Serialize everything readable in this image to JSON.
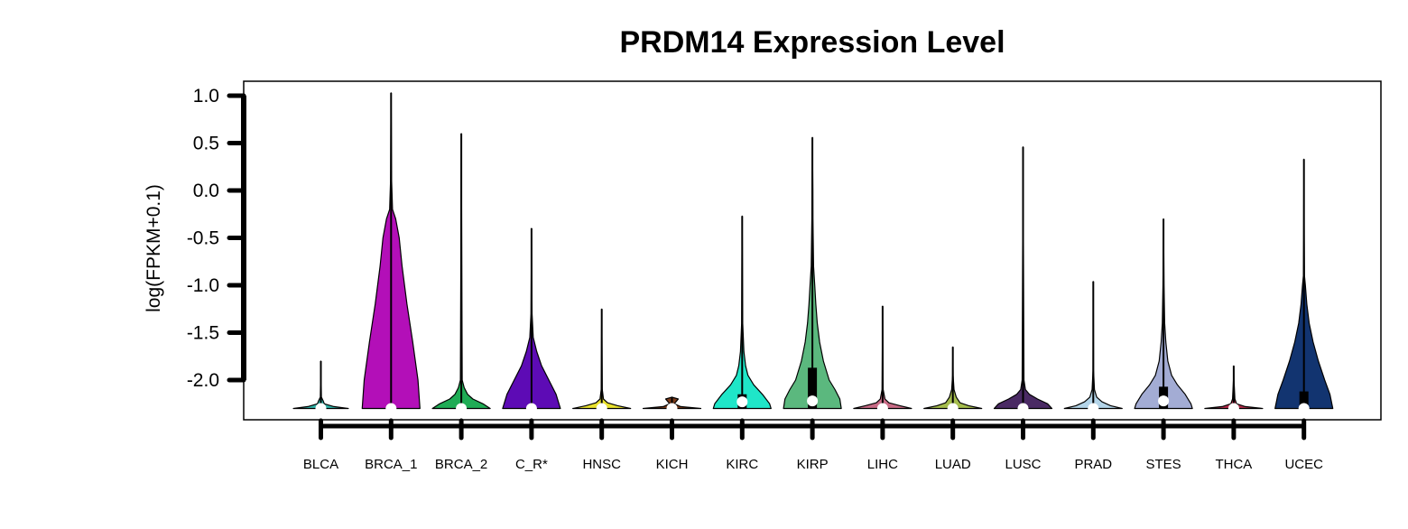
{
  "chart_data": {
    "type": "violin",
    "title": "PRDM14 Expression Level",
    "xlabel": "",
    "ylabel": "log(FPKM+0.1)",
    "ylim": [
      -2.43,
      1.13
    ],
    "yticks": [
      "1.0",
      "0.5",
      "0.0",
      "-0.5",
      "-1.0",
      "-1.5",
      "-2.0"
    ],
    "yticks_values": [
      1.0,
      0.5,
      0.0,
      -0.5,
      -1.0,
      -1.5,
      -2.0
    ],
    "grid": false,
    "legend": "none",
    "baseline": -2.3,
    "categories": [
      "BLCA",
      "BRCA_1",
      "BRCA_2",
      "C_R*",
      "HNSC",
      "KICH",
      "KIRC",
      "KIRP",
      "LIHC",
      "LUAD",
      "LUSC",
      "PRAD",
      "STES",
      "THCA",
      "UCEC"
    ],
    "series": [
      {
        "category": "BLCA",
        "color": "#2fb3a8",
        "max": -1.8,
        "median": -2.3,
        "q1": -2.3,
        "q3": -2.3,
        "profile": [
          [
            -2.3,
            0.95
          ],
          [
            -2.28,
            0.45
          ],
          [
            -2.25,
            0.12
          ],
          [
            -2.22,
            0.08
          ],
          [
            -2.18,
            0.02
          ],
          [
            -1.8,
            0.0
          ]
        ]
      },
      {
        "category": "BRCA_1",
        "color": "#b30fb8",
        "max": 1.03,
        "median": -2.3,
        "q1": -2.3,
        "q3": -2.3,
        "profile": [
          [
            -2.3,
            1.0
          ],
          [
            -2.0,
            0.93
          ],
          [
            -1.6,
            0.75
          ],
          [
            -1.2,
            0.55
          ],
          [
            -0.8,
            0.38
          ],
          [
            -0.5,
            0.28
          ],
          [
            -0.3,
            0.16
          ],
          [
            -0.2,
            0.05
          ],
          [
            0.1,
            0.02
          ],
          [
            1.03,
            0.0
          ]
        ]
      },
      {
        "category": "BRCA_2",
        "color": "#1fac55",
        "max": 0.6,
        "median": -2.3,
        "q1": -2.3,
        "q3": -2.3,
        "profile": [
          [
            -2.3,
            1.0
          ],
          [
            -2.25,
            0.75
          ],
          [
            -2.2,
            0.4
          ],
          [
            -2.15,
            0.22
          ],
          [
            -2.08,
            0.1
          ],
          [
            -2.0,
            0.03
          ],
          [
            0.6,
            0.0
          ]
        ]
      },
      {
        "category": "C_R*",
        "color": "#5d0bb5",
        "max": -0.4,
        "median": -2.3,
        "q1": -2.3,
        "q3": -2.3,
        "profile": [
          [
            -2.3,
            1.0
          ],
          [
            -2.15,
            0.85
          ],
          [
            -2.0,
            0.6
          ],
          [
            -1.85,
            0.35
          ],
          [
            -1.7,
            0.18
          ],
          [
            -1.55,
            0.06
          ],
          [
            -1.3,
            0.02
          ],
          [
            -0.4,
            0.0
          ]
        ]
      },
      {
        "category": "HNSC",
        "color": "#e9e22e",
        "max": -1.25,
        "median": -2.3,
        "q1": -2.3,
        "q3": -2.3,
        "profile": [
          [
            -2.3,
            1.0
          ],
          [
            -2.27,
            0.55
          ],
          [
            -2.24,
            0.2
          ],
          [
            -2.2,
            0.06
          ],
          [
            -2.1,
            0.02
          ],
          [
            -1.25,
            0.0
          ]
        ]
      },
      {
        "category": "KICH",
        "color": "#7a3b1a",
        "max": -2.18,
        "median": -2.3,
        "q1": -2.3,
        "q3": -2.3,
        "profile": [
          [
            -2.3,
            1.0
          ],
          [
            -2.28,
            0.3
          ],
          [
            -2.25,
            0.08
          ],
          [
            -2.2,
            0.22
          ],
          [
            -2.18,
            0.0
          ]
        ]
      },
      {
        "category": "KIRC",
        "color": "#1fe6c8",
        "max": -0.27,
        "median": -2.23,
        "q1": -2.3,
        "q3": -2.15,
        "profile": [
          [
            -2.3,
            1.0
          ],
          [
            -2.25,
            0.95
          ],
          [
            -2.15,
            0.7
          ],
          [
            -2.05,
            0.4
          ],
          [
            -1.95,
            0.2
          ],
          [
            -1.85,
            0.12
          ],
          [
            -1.7,
            0.06
          ],
          [
            -1.4,
            0.02
          ],
          [
            -0.27,
            0.0
          ]
        ]
      },
      {
        "category": "KIRP",
        "color": "#5bb87e",
        "max": 0.56,
        "median": -2.22,
        "q1": -2.3,
        "q3": -1.87,
        "profile": [
          [
            -2.3,
            1.0
          ],
          [
            -2.2,
            0.95
          ],
          [
            -2.1,
            0.78
          ],
          [
            -2.0,
            0.58
          ],
          [
            -1.8,
            0.38
          ],
          [
            -1.6,
            0.25
          ],
          [
            -1.4,
            0.17
          ],
          [
            -1.2,
            0.12
          ],
          [
            -1.0,
            0.08
          ],
          [
            -0.8,
            0.04
          ],
          [
            -0.3,
            0.02
          ],
          [
            0.0,
            0.015
          ],
          [
            0.56,
            0.0
          ]
        ]
      },
      {
        "category": "LIHC",
        "color": "#c86b86",
        "max": -1.22,
        "median": -2.3,
        "q1": -2.3,
        "q3": -2.3,
        "profile": [
          [
            -2.3,
            1.0
          ],
          [
            -2.27,
            0.6
          ],
          [
            -2.24,
            0.22
          ],
          [
            -2.2,
            0.08
          ],
          [
            -2.1,
            0.02
          ],
          [
            -1.22,
            0.0
          ]
        ]
      },
      {
        "category": "LUAD",
        "color": "#a5bd4d",
        "max": -1.65,
        "median": -2.3,
        "q1": -2.3,
        "q3": -2.3,
        "profile": [
          [
            -2.3,
            1.0
          ],
          [
            -2.27,
            0.55
          ],
          [
            -2.24,
            0.25
          ],
          [
            -2.18,
            0.12
          ],
          [
            -2.1,
            0.04
          ],
          [
            -1.95,
            0.01
          ],
          [
            -1.65,
            0.0
          ]
        ]
      },
      {
        "category": "LUSC",
        "color": "#4a2a64",
        "max": 0.46,
        "median": -2.3,
        "q1": -2.3,
        "q3": -2.3,
        "profile": [
          [
            -2.3,
            1.0
          ],
          [
            -2.25,
            0.85
          ],
          [
            -2.2,
            0.5
          ],
          [
            -2.15,
            0.22
          ],
          [
            -2.1,
            0.08
          ],
          [
            -2.0,
            0.03
          ],
          [
            0.46,
            0.0
          ]
        ]
      },
      {
        "category": "PRAD",
        "color": "#b3d4e8",
        "max": -0.96,
        "median": -2.3,
        "q1": -2.3,
        "q3": -2.3,
        "profile": [
          [
            -2.3,
            1.0
          ],
          [
            -2.27,
            0.6
          ],
          [
            -2.23,
            0.3
          ],
          [
            -2.18,
            0.12
          ],
          [
            -2.1,
            0.04
          ],
          [
            -1.9,
            0.01
          ],
          [
            -0.96,
            0.0
          ]
        ]
      },
      {
        "category": "STES",
        "color": "#a3acd4",
        "max": -0.3,
        "median": -2.22,
        "q1": -2.3,
        "q3": -2.07,
        "profile": [
          [
            -2.3,
            1.0
          ],
          [
            -2.25,
            0.95
          ],
          [
            -2.15,
            0.75
          ],
          [
            -2.05,
            0.48
          ],
          [
            -1.95,
            0.28
          ],
          [
            -1.8,
            0.15
          ],
          [
            -1.6,
            0.08
          ],
          [
            -1.4,
            0.04
          ],
          [
            -1.0,
            0.02
          ],
          [
            -0.3,
            0.0
          ]
        ]
      },
      {
        "category": "THCA",
        "color": "#b52c4c",
        "max": -1.85,
        "median": -2.3,
        "q1": -2.3,
        "q3": -2.3,
        "profile": [
          [
            -2.3,
            1.0
          ],
          [
            -2.28,
            0.4
          ],
          [
            -2.25,
            0.1
          ],
          [
            -2.2,
            0.04
          ],
          [
            -2.0,
            0.01
          ],
          [
            -1.85,
            0.0
          ]
        ]
      },
      {
        "category": "UCEC",
        "color": "#123470",
        "max": 0.33,
        "median": -2.3,
        "q1": -2.3,
        "q3": -2.12,
        "profile": [
          [
            -2.3,
            1.0
          ],
          [
            -2.15,
            0.9
          ],
          [
            -2.0,
            0.72
          ],
          [
            -1.8,
            0.5
          ],
          [
            -1.6,
            0.32
          ],
          [
            -1.4,
            0.18
          ],
          [
            -1.2,
            0.1
          ],
          [
            -1.0,
            0.05
          ],
          [
            -0.9,
            0.02
          ],
          [
            -0.5,
            0.01
          ],
          [
            0.33,
            0.0
          ]
        ]
      }
    ]
  }
}
